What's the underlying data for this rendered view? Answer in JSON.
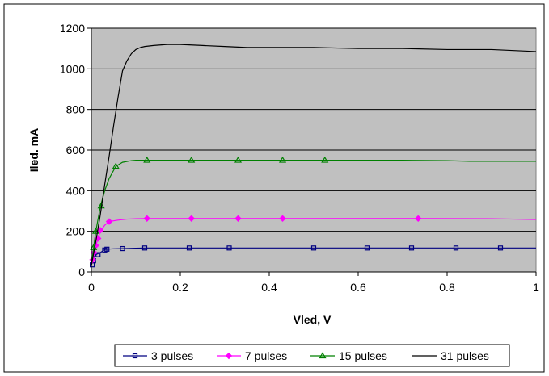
{
  "chart_data": {
    "type": "line",
    "title": "",
    "xlabel": "Vled, V",
    "ylabel": "Iled. mA",
    "xlim": [
      0,
      1
    ],
    "ylim": [
      0,
      1200
    ],
    "xticks": [
      0,
      0.2,
      0.4,
      0.6,
      0.8,
      1
    ],
    "xtick_labels": [
      "0",
      "0.2",
      "0.4",
      "0.6",
      "0.8",
      "1"
    ],
    "yticks": [
      0,
      200,
      400,
      600,
      800,
      1000,
      1200
    ],
    "ytick_labels": [
      "0",
      "200",
      "400",
      "600",
      "800",
      "1000",
      "1200"
    ],
    "grid": "horizontal",
    "plot_background": "#c0c0c0",
    "legend_position": "bottom",
    "series": [
      {
        "name": "3 pulses",
        "color": "#000080",
        "marker": "square",
        "x": [
          0,
          0.002,
          0.005,
          0.01,
          0.02,
          0.03,
          0.035,
          0.05,
          0.07,
          0.1,
          0.12,
          0.2,
          0.3,
          0.4,
          0.5,
          0.6,
          0.7,
          0.8,
          0.9,
          1.0
        ],
        "y": [
          35,
          55,
          70,
          85,
          95,
          110,
          112,
          114,
          115,
          117,
          118,
          118,
          118,
          118,
          118,
          118,
          118,
          118,
          118,
          118
        ],
        "marker_x": [
          0.002,
          0.005,
          0.015,
          0.03,
          0.035,
          0.07,
          0.12,
          0.22,
          0.31,
          0.5,
          0.62,
          0.72,
          0.82,
          0.92
        ],
        "marker_y": [
          35,
          55,
          85,
          108,
          112,
          115,
          118,
          118,
          118,
          118,
          118,
          118,
          118,
          118
        ]
      },
      {
        "name": "7 pulses",
        "color": "#ff00ff",
        "marker": "diamond",
        "x": [
          0,
          0.003,
          0.006,
          0.01,
          0.015,
          0.02,
          0.03,
          0.04,
          0.06,
          0.08,
          0.1,
          0.125,
          0.2,
          0.4,
          0.6,
          0.75,
          0.9,
          1.0
        ],
        "y": [
          30,
          60,
          95,
          130,
          165,
          200,
          230,
          248,
          255,
          260,
          262,
          263,
          263,
          263,
          263,
          263,
          262,
          258
        ],
        "marker_x": [
          0.003,
          0.006,
          0.01,
          0.015,
          0.02,
          0.04,
          0.125,
          0.225,
          0.33,
          0.43,
          0.735
        ],
        "marker_y": [
          60,
          95,
          130,
          165,
          205,
          248,
          263,
          263,
          263,
          263,
          263
        ]
      },
      {
        "name": "15 pulses",
        "color": "#008000",
        "marker": "triangle",
        "x": [
          0,
          0.005,
          0.01,
          0.02,
          0.03,
          0.04,
          0.055,
          0.07,
          0.09,
          0.1,
          0.125,
          0.2,
          0.3,
          0.5,
          0.7,
          0.8,
          0.85,
          0.9,
          1.0
        ],
        "y": [
          30,
          120,
          200,
          320,
          400,
          460,
          520,
          540,
          548,
          550,
          550,
          550,
          550,
          550,
          550,
          548,
          545,
          545,
          545
        ],
        "marker_x": [
          0.005,
          0.01,
          0.022,
          0.055,
          0.125,
          0.225,
          0.33,
          0.43,
          0.525
        ],
        "marker_y": [
          120,
          200,
          325,
          520,
          550,
          550,
          550,
          550,
          550
        ]
      },
      {
        "name": "31 pulses",
        "color": "#000000",
        "marker": "none",
        "x": [
          0,
          0.01,
          0.02,
          0.03,
          0.04,
          0.05,
          0.06,
          0.07,
          0.08,
          0.09,
          0.1,
          0.11,
          0.12,
          0.14,
          0.17,
          0.2,
          0.25,
          0.3,
          0.35,
          0.4,
          0.5,
          0.6,
          0.7,
          0.8,
          0.9,
          0.95,
          1.0
        ],
        "y": [
          30,
          150,
          280,
          430,
          570,
          720,
          860,
          990,
          1040,
          1075,
          1095,
          1105,
          1110,
          1115,
          1120,
          1120,
          1115,
          1110,
          1105,
          1105,
          1105,
          1100,
          1100,
          1095,
          1095,
          1090,
          1085
        ]
      }
    ]
  }
}
